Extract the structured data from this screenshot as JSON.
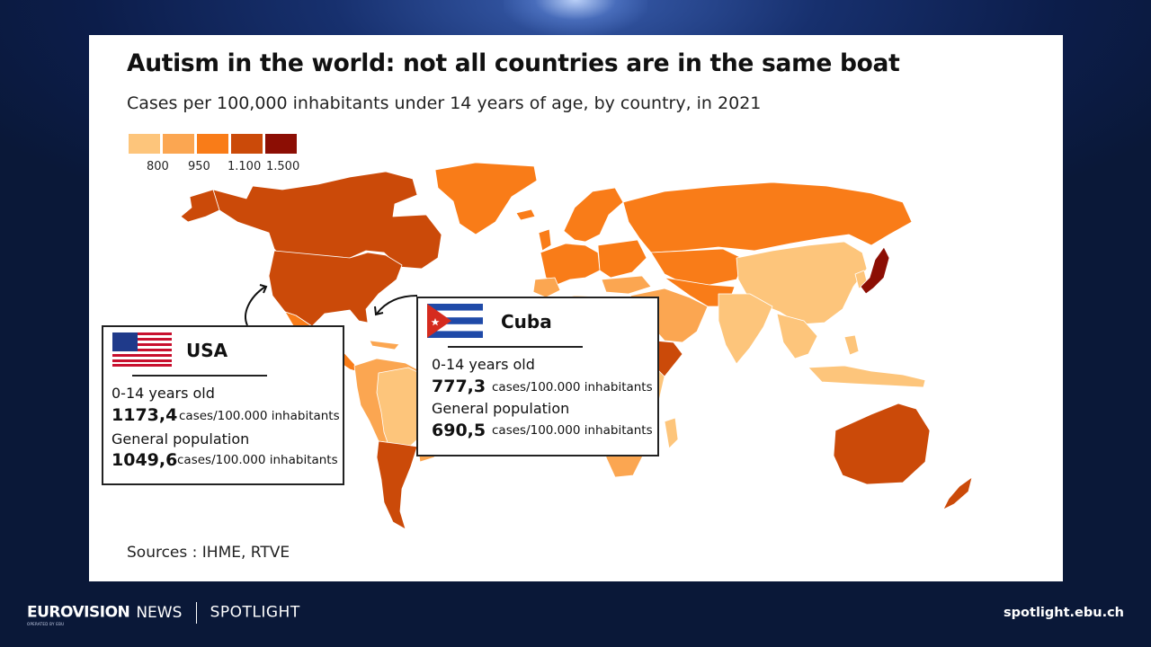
{
  "chart": {
    "title": "Autism in the world: not all countries are in the same boat",
    "subtitle": "Cases per 100,000 inhabitants under 14 years of age, by country, in 2021",
    "sources": "Sources : IHME, RTVE"
  },
  "legend": {
    "colors": [
      "#fdc57b",
      "#fba651",
      "#f97c18",
      "#cb4a09",
      "#8c0e04"
    ],
    "labels": [
      "800",
      "950",
      "1.100",
      "1.500"
    ]
  },
  "callouts": {
    "usa": {
      "country": "USA",
      "age_label": "0-14 years old",
      "age_value": "1173,4",
      "unit": "cases/100.000 inhabitants",
      "general_label": "General population",
      "general_value": "1049,6"
    },
    "cuba": {
      "country": "Cuba",
      "age_label": "0-14 years old",
      "age_value": "777,3",
      "unit": "cases/100.000 inhabitants",
      "general_label": "General population",
      "general_value": "690,5"
    }
  },
  "footer": {
    "brand": "EURO",
    "brand_mark": "VISION",
    "news": "NEWS",
    "spotlight": "SPOTLIGHT",
    "operated": "OPERATED BY EBU",
    "site": "spotlight.ebu.ch"
  }
}
